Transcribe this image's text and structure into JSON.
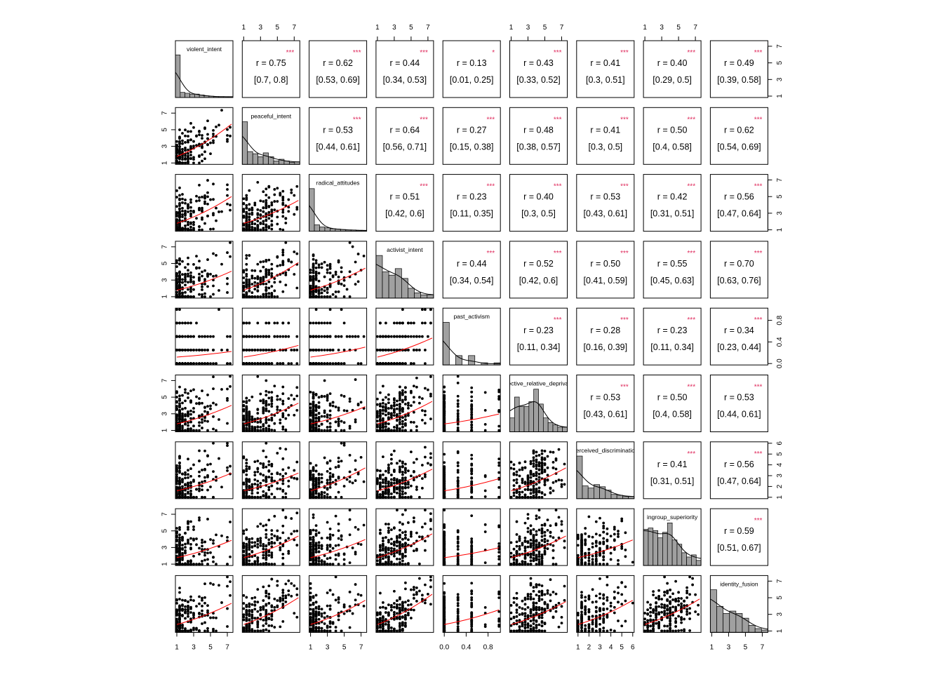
{
  "chart_data": {
    "type": "scatter",
    "variables": [
      "violent_intent",
      "peaceful_intent",
      "radical_attitudes",
      "activist_intent",
      "past_activism",
      "collective_relative_deprivation",
      "perceived_discrimination",
      "ingroup_superiority",
      "identity_fusion"
    ],
    "axis_ticks": {
      "violent_intent": [
        "1",
        "3",
        "5",
        "7"
      ],
      "peaceful_intent": [
        "1",
        "3",
        "5",
        "7"
      ],
      "radical_attitudes": [
        "1",
        "3",
        "5",
        "7"
      ],
      "activist_intent": [
        "1",
        "3",
        "5",
        "7"
      ],
      "past_activism": [
        "0.0",
        "0.4",
        "0.8"
      ],
      "collective_relative_deprivation": [
        "1",
        "3",
        "5",
        "7"
      ],
      "perceived_discrimination": [
        "1",
        "2",
        "3",
        "4",
        "5",
        "6"
      ],
      "ingroup_superiority": [
        "1",
        "3",
        "5",
        "7"
      ],
      "identity_fusion": [
        "1",
        "3",
        "5",
        "7"
      ]
    },
    "correlations": [
      [
        {
          "r": "0.75",
          "ci": "[0.7, 0.8]",
          "sig": "***"
        },
        {
          "r": "0.62",
          "ci": "[0.53, 0.69]",
          "sig": "***"
        },
        {
          "r": "0.44",
          "ci": "[0.34, 0.53]",
          "sig": "***"
        },
        {
          "r": "0.13",
          "ci": "[0.01, 0.25]",
          "sig": "*"
        },
        {
          "r": "0.43",
          "ci": "[0.33, 0.52]",
          "sig": "***"
        },
        {
          "r": "0.41",
          "ci": "[0.3, 0.51]",
          "sig": "***"
        },
        {
          "r": "0.40",
          "ci": "[0.29, 0.5]",
          "sig": "***"
        },
        {
          "r": "0.49",
          "ci": "[0.39, 0.58]",
          "sig": "***"
        }
      ],
      [
        {
          "r": "0.53",
          "ci": "[0.44, 0.61]",
          "sig": "***"
        },
        {
          "r": "0.64",
          "ci": "[0.56, 0.71]",
          "sig": "***"
        },
        {
          "r": "0.27",
          "ci": "[0.15, 0.38]",
          "sig": "***"
        },
        {
          "r": "0.48",
          "ci": "[0.38, 0.57]",
          "sig": "***"
        },
        {
          "r": "0.41",
          "ci": "[0.3, 0.5]",
          "sig": "***"
        },
        {
          "r": "0.50",
          "ci": "[0.4, 0.58]",
          "sig": "***"
        },
        {
          "r": "0.62",
          "ci": "[0.54, 0.69]",
          "sig": "***"
        }
      ],
      [
        {
          "r": "0.51",
          "ci": "[0.42, 0.6]",
          "sig": "***"
        },
        {
          "r": "0.23",
          "ci": "[0.11, 0.35]",
          "sig": "***"
        },
        {
          "r": "0.40",
          "ci": "[0.3, 0.5]",
          "sig": "***"
        },
        {
          "r": "0.53",
          "ci": "[0.43, 0.61]",
          "sig": "***"
        },
        {
          "r": "0.42",
          "ci": "[0.31, 0.51]",
          "sig": "***"
        },
        {
          "r": "0.56",
          "ci": "[0.47, 0.64]",
          "sig": "***"
        }
      ],
      [
        {
          "r": "0.44",
          "ci": "[0.34, 0.54]",
          "sig": "***"
        },
        {
          "r": "0.52",
          "ci": "[0.42, 0.6]",
          "sig": "***"
        },
        {
          "r": "0.50",
          "ci": "[0.41, 0.59]",
          "sig": "***"
        },
        {
          "r": "0.55",
          "ci": "[0.45, 0.63]",
          "sig": "***"
        },
        {
          "r": "0.70",
          "ci": "[0.63, 0.76]",
          "sig": "***"
        }
      ],
      [
        {
          "r": "0.23",
          "ci": "[0.11, 0.34]",
          "sig": "***"
        },
        {
          "r": "0.28",
          "ci": "[0.16, 0.39]",
          "sig": "***"
        },
        {
          "r": "0.23",
          "ci": "[0.11, 0.34]",
          "sig": "***"
        },
        {
          "r": "0.34",
          "ci": "[0.23, 0.44]",
          "sig": "***"
        }
      ],
      [
        {
          "r": "0.53",
          "ci": "[0.43, 0.61]",
          "sig": "***"
        },
        {
          "r": "0.50",
          "ci": "[0.4, 0.58]",
          "sig": "***"
        },
        {
          "r": "0.53",
          "ci": "[0.44, 0.61]",
          "sig": "***"
        }
      ],
      [
        {
          "r": "0.41",
          "ci": "[0.31, 0.51]",
          "sig": "***"
        },
        {
          "r": "0.56",
          "ci": "[0.47, 0.64]",
          "sig": "***"
        }
      ],
      [
        {
          "r": "0.59",
          "ci": "[0.51, 0.67]",
          "sig": "***"
        }
      ]
    ],
    "histograms_relative": [
      [
        1.0,
        0.12,
        0.1,
        0.08,
        0.08,
        0.06,
        0.04,
        0.03,
        0.02,
        0.02,
        0.02,
        0.02
      ],
      [
        1.0,
        0.3,
        0.25,
        0.18,
        0.27,
        0.18,
        0.08,
        0.12,
        0.08,
        0.05,
        0.06
      ],
      [
        1.0,
        0.15,
        0.1,
        0.08,
        0.06,
        0.05,
        0.04,
        0.03,
        0.03,
        0.02,
        0.02
      ],
      [
        0.65,
        0.4,
        0.35,
        0.45,
        0.3,
        0.15,
        0.08,
        0.05,
        0.05
      ],
      [
        1.0,
        0,
        0.22,
        0,
        0.22,
        0,
        0.05,
        0,
        0.05
      ],
      [
        0.3,
        0.75,
        0.55,
        0.55,
        0.65,
        0.92,
        0.6,
        0.3,
        0.2,
        0.15,
        0.1,
        0.1
      ],
      [
        1.0,
        0.3,
        0.25,
        0.33,
        0.28,
        0.2,
        0.1,
        0.08,
        0.05,
        0.05
      ],
      [
        0.85,
        0.88,
        0.82,
        0.65,
        0.78,
        1.0,
        0.6,
        0.5,
        0.3,
        0.2,
        0.25,
        0.12
      ],
      [
        0.9,
        0.55,
        0.4,
        0.45,
        0.4,
        0.3,
        0.15,
        0.08,
        0.05
      ]
    ],
    "colors": {
      "points": "#000000",
      "smoother": "#ff0000",
      "stars": "#df2a5c",
      "hist_fill": "#a0a0a0"
    },
    "r_prefix": "r  = ",
    "title": "",
    "xlabel": "",
    "ylabel": ""
  }
}
